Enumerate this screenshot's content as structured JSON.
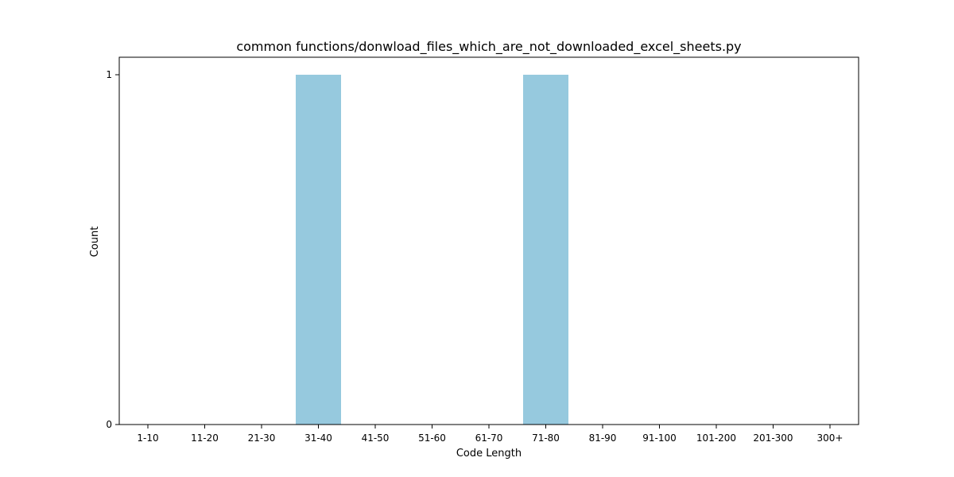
{
  "chart_data": {
    "type": "bar",
    "title": "common functions/donwload_files_which_are_not_downloaded_excel_sheets.py",
    "xlabel": "Code Length",
    "ylabel": "Count",
    "categories": [
      "1-10",
      "11-20",
      "21-30",
      "31-40",
      "41-50",
      "51-60",
      "61-70",
      "71-80",
      "81-90",
      "91-100",
      "101-200",
      "201-300",
      "300+"
    ],
    "values": [
      0,
      0,
      0,
      1,
      0,
      0,
      0,
      1,
      0,
      0,
      0,
      0,
      0
    ],
    "ylim": [
      0,
      1.05
    ],
    "yticks": [
      0,
      1
    ],
    "bar_color": "#96c9de",
    "grid": false,
    "legend": "none"
  }
}
